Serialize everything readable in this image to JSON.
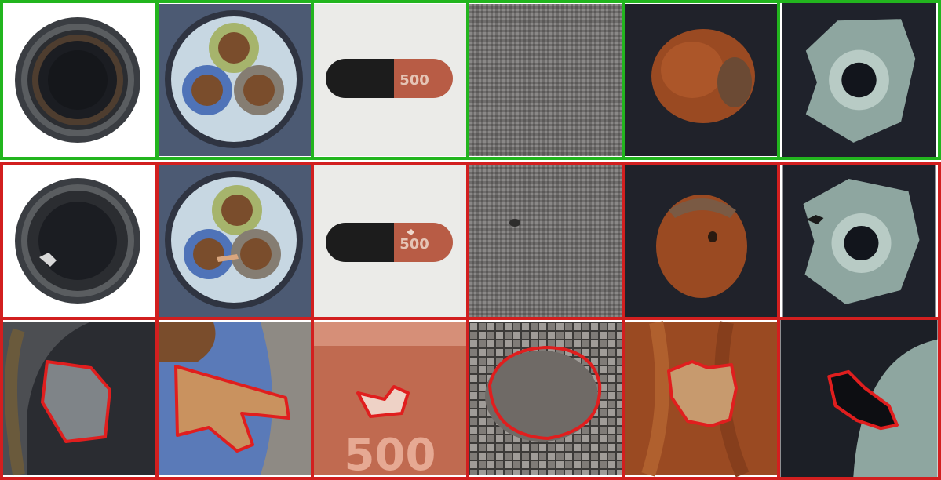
{
  "colors": {
    "normal_border": "#22b51e",
    "anomaly_border": "#d21f1f",
    "segmentation_outline": "#e01e1e"
  },
  "objects": [
    {
      "object": "bottle",
      "defect": "broken-rim"
    },
    {
      "object": "cable",
      "defect": "bent-wire"
    },
    {
      "object": "capsule",
      "defect": "crack",
      "print": "500"
    },
    {
      "object": "carpet",
      "defect": "hole"
    },
    {
      "object": "hazelnut",
      "defect": "hole"
    },
    {
      "object": "metal-nut",
      "defect": "color-spot"
    }
  ],
  "rows": [
    {
      "id": "normal",
      "status": "normal",
      "border": "green"
    },
    {
      "id": "anomalous",
      "status": "anomaly",
      "border": "red"
    },
    {
      "id": "zoom-mask",
      "status": "anomaly-segmentation",
      "border": "red"
    }
  ],
  "capsule_print": "500"
}
